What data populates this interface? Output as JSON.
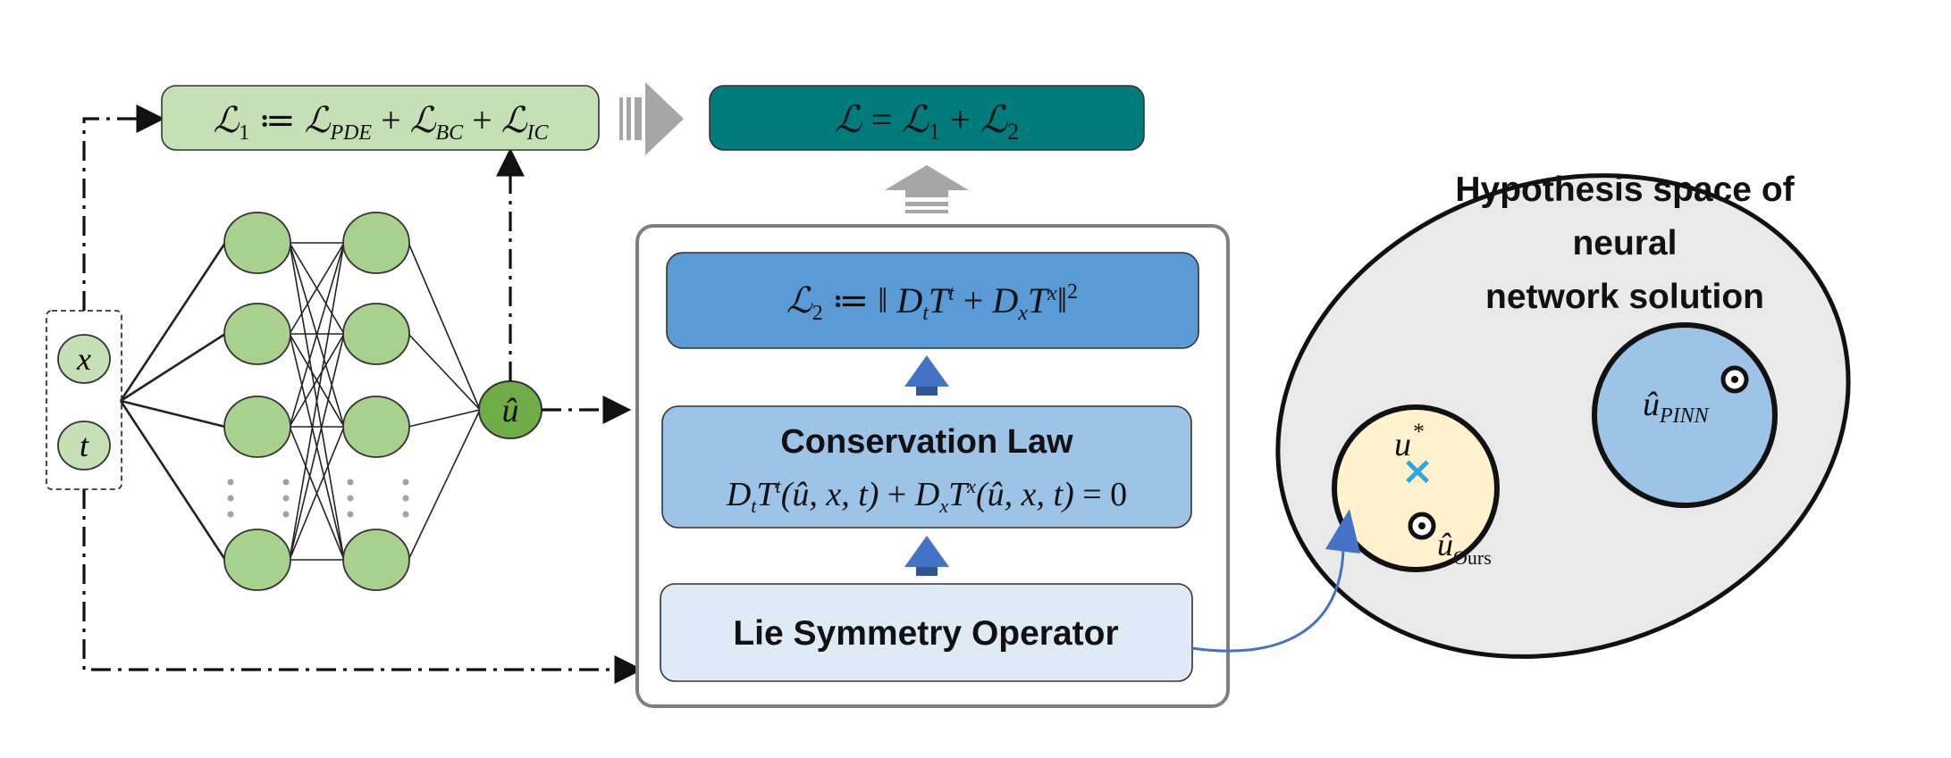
{
  "loss_total": {
    "L": "ℒ",
    "eq": " = ",
    "L1": "ℒ",
    "sub1": "1",
    "plus": " + ",
    "L2": "ℒ",
    "sub2": "2"
  },
  "loss_1": {
    "L": "ℒ",
    "sub": "1",
    "assign": " ≔ ",
    "Lpde": "ℒ",
    "pde": "PDE",
    "plus1": " + ",
    "Lbc": "ℒ",
    "bc": "BC",
    "plus2": " + ",
    "Lic": "ℒ",
    "ic": "IC"
  },
  "loss_2": {
    "L": "ℒ",
    "sub": "2",
    "assign": " ≔ ‖ ",
    "Dt": "D",
    "t_sub": "t",
    "Tt": "T",
    "t_sup": "t",
    "plus": " + ",
    "Dx": "D",
    "x_sub": "x",
    "Tx": "T",
    "x_sup": "x",
    "norm": "‖",
    "sq": "2"
  },
  "conservation_law": {
    "title": "Conservation Law",
    "D1": "D",
    "t_sub": "t",
    "T1": "T",
    "t_sup": "t",
    "args1": "(û, x, t)",
    "plus": " + ",
    "D2": "D",
    "x_sub": "x",
    "T2": "T",
    "x_sup": "x",
    "args2": "(û, x, t)",
    "rhs": " = 0"
  },
  "lie_symmetry": {
    "label": "Lie Symmetry Operator"
  },
  "inputs": {
    "x": "x",
    "t": "t"
  },
  "output": {
    "u_hat": "û"
  },
  "hypothesis_space": {
    "line1": "Hypothesis space of",
    "line2": "neural",
    "line3": "network solution"
  },
  "pinn_solution": {
    "u": "û",
    "sub": "PINN"
  },
  "ours_solution": {
    "u_star": "u",
    "star": "*",
    "u_hat": "û",
    "sub": "Ours",
    "cross": "×"
  },
  "colors": {
    "loss1_fill": "#c5e0b4",
    "loss_total_fill": "#007b7b",
    "loss2_fill": "#5b9bd5",
    "conservation_fill": "#9dc3e6",
    "lie_fill": "#deebf7",
    "node_fill": "#a9d18e",
    "output_node_fill": "#70ad47",
    "space_fill": "#e9e9e9",
    "pinn_fill": "#9dc3e6",
    "ours_fill": "#fff2cc",
    "arrow_blue": "#4472c4",
    "cross": "#2ea7e0",
    "up_arrow_gray": "#a6a6a6"
  }
}
